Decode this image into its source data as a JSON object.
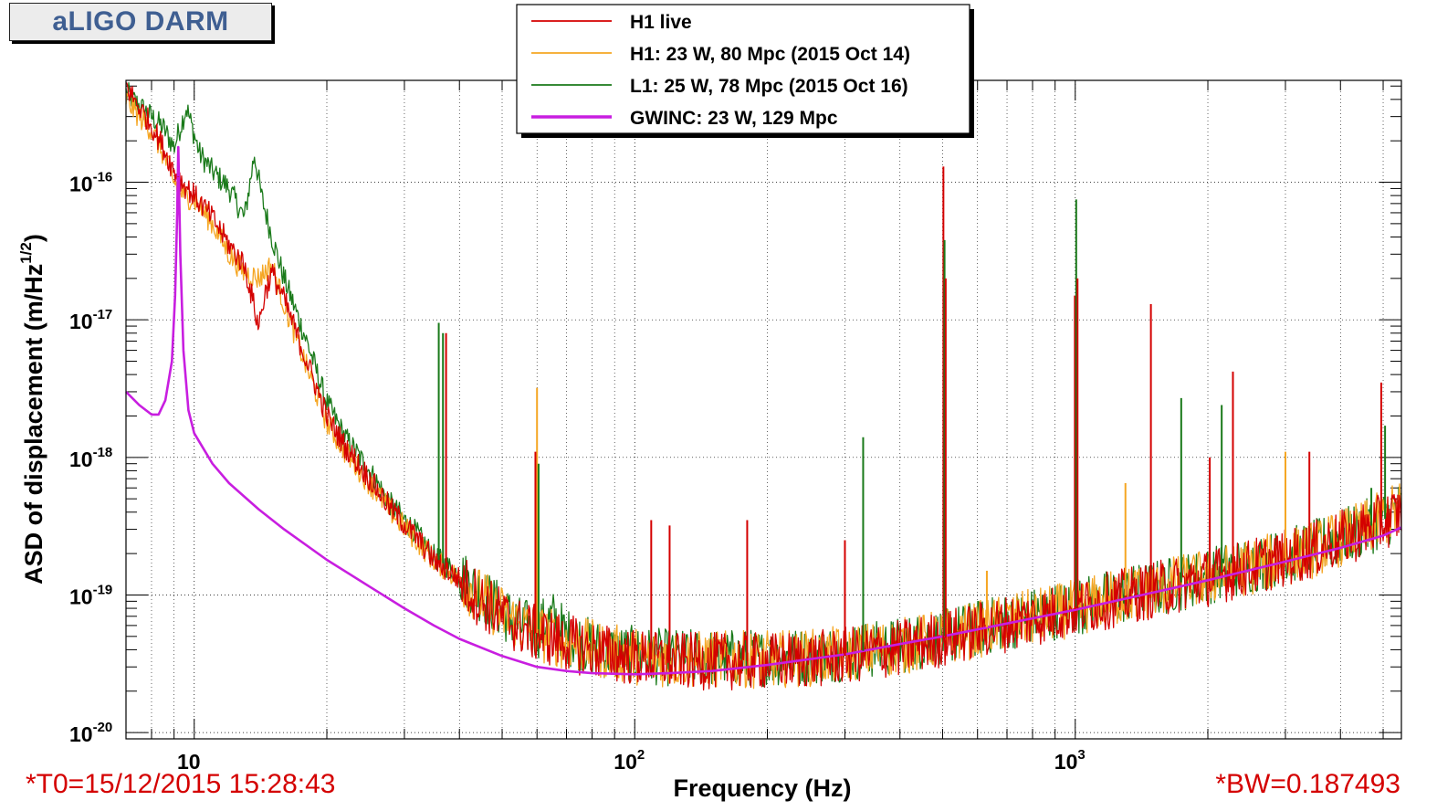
{
  "header": {
    "title": "aLIGO DARM"
  },
  "footer": {
    "t0": "*T0=15/12/2015 15:28:43",
    "bw": "*BW=0.187493"
  },
  "chart_data": {
    "type": "line",
    "xlabel": "Frequency (Hz)",
    "ylabel_main": "ASD of displacement (m/Hz",
    "ylabel_sup": "1/2",
    "ylabel_close": ")",
    "xscale": "log",
    "yscale": "log",
    "xlim": [
      7,
      5500
    ],
    "ylim": [
      9e-21,
      5.5e-16
    ],
    "grid": true,
    "legend_position": "top-center",
    "x_ticks": [
      {
        "value": 10,
        "base": "10",
        "exp": ""
      },
      {
        "value": 100,
        "base": "10",
        "exp": "2"
      },
      {
        "value": 1000,
        "base": "10",
        "exp": "3"
      }
    ],
    "y_ticks": [
      {
        "value": 1e-20,
        "base": "10",
        "exp": "-20"
      },
      {
        "value": 1e-19,
        "base": "10",
        "exp": "-19"
      },
      {
        "value": 1e-18,
        "base": "10",
        "exp": "-18"
      },
      {
        "value": 1e-17,
        "base": "10",
        "exp": "-17"
      },
      {
        "value": 1e-16,
        "base": "10",
        "exp": "-16"
      }
    ],
    "series": [
      {
        "name": "L1: 25 W, 78 Mpc (2015 Oct 16)",
        "color": "#1a7a1a",
        "stroke": 1.3,
        "points": [
          [
            7,
            4.5e-16
          ],
          [
            7.5,
            3.6e-16
          ],
          [
            8,
            3e-16
          ],
          [
            8.5,
            2.5e-16
          ],
          [
            9,
            1.8e-16
          ],
          [
            9.6,
            3.5e-16
          ],
          [
            10.3,
            1.6e-16
          ],
          [
            11,
            1.2e-16
          ],
          [
            12,
            9e-17
          ],
          [
            13,
            5.5e-17
          ],
          [
            13.7,
            1.6e-16
          ],
          [
            14.2,
            8e-17
          ],
          [
            15,
            4e-17
          ],
          [
            16,
            2e-17
          ],
          [
            18,
            7e-18
          ],
          [
            20,
            2.5e-18
          ],
          [
            22,
            1.4e-18
          ],
          [
            25,
            8e-19
          ],
          [
            28,
            4.5e-19
          ],
          [
            32,
            2.8e-19
          ],
          [
            35,
            1.9e-19
          ],
          [
            40,
            1.4e-19
          ],
          [
            45,
            1e-19
          ],
          [
            50,
            7.6e-20
          ],
          [
            55,
            6e-20
          ],
          [
            60,
            5.5e-20
          ],
          [
            65,
            6.8e-20
          ],
          [
            70,
            5e-20
          ],
          [
            80,
            4.2e-20
          ],
          [
            90,
            3.8e-20
          ],
          [
            100,
            3.7e-20
          ],
          [
            120,
            3.5e-20
          ],
          [
            150,
            3.5e-20
          ],
          [
            200,
            3.5e-20
          ],
          [
            250,
            3.6e-20
          ],
          [
            300,
            3.8e-20
          ],
          [
            350,
            4e-20
          ],
          [
            400,
            4.3e-20
          ],
          [
            500,
            5e-20
          ],
          [
            600,
            5.7e-20
          ],
          [
            700,
            6.4e-20
          ],
          [
            800,
            7e-20
          ],
          [
            1000,
            8.2e-20
          ],
          [
            1200,
            9.5e-20
          ],
          [
            1500,
            1.1e-19
          ],
          [
            2000,
            1.38e-19
          ],
          [
            2500,
            1.65e-19
          ],
          [
            3000,
            1.9e-19
          ],
          [
            3500,
            2.2e-19
          ],
          [
            4000,
            2.6e-19
          ],
          [
            4500,
            3e-19
          ],
          [
            5000,
            3.5e-19
          ],
          [
            5500,
            4.2e-19
          ]
        ]
      },
      {
        "name": "H1: 23 W, 80 Mpc (2015 Oct 14)",
        "color": "#f5a623",
        "stroke": 1.3,
        "points": [
          [
            7,
            4e-16
          ],
          [
            7.5,
            3e-16
          ],
          [
            8,
            2.4e-16
          ],
          [
            8.5,
            1.6e-16
          ],
          [
            9,
            1e-16
          ],
          [
            9.5,
            8e-17
          ],
          [
            10,
            7.5e-17
          ],
          [
            11,
            5e-17
          ],
          [
            12,
            3e-17
          ],
          [
            13,
            2.2e-17
          ],
          [
            14,
            2e-17
          ],
          [
            15,
            2.5e-17
          ],
          [
            16,
            1.3e-17
          ],
          [
            18,
            4.5e-18
          ],
          [
            20,
            1.8e-18
          ],
          [
            22,
            1.1e-18
          ],
          [
            25,
            6.5e-19
          ],
          [
            28,
            4e-19
          ],
          [
            32,
            2.5e-19
          ],
          [
            35,
            1.8e-19
          ],
          [
            40,
            1.3e-19
          ],
          [
            45,
            9.5e-20
          ],
          [
            50,
            7.3e-20
          ],
          [
            55,
            6e-20
          ],
          [
            60,
            5.3e-20
          ],
          [
            70,
            4.6e-20
          ],
          [
            80,
            4.1e-20
          ],
          [
            90,
            3.8e-20
          ],
          [
            100,
            3.6e-20
          ],
          [
            120,
            3.4e-20
          ],
          [
            150,
            3.4e-20
          ],
          [
            200,
            3.4e-20
          ],
          [
            250,
            3.5e-20
          ],
          [
            300,
            3.7e-20
          ],
          [
            350,
            4e-20
          ],
          [
            400,
            4.2e-20
          ],
          [
            500,
            4.9e-20
          ],
          [
            600,
            5.6e-20
          ],
          [
            700,
            6.3e-20
          ],
          [
            800,
            6.9e-20
          ],
          [
            1000,
            8e-20
          ],
          [
            1200,
            9.3e-20
          ],
          [
            1500,
            1.1e-19
          ],
          [
            2000,
            1.35e-19
          ],
          [
            2500,
            1.6e-19
          ],
          [
            3000,
            1.85e-19
          ],
          [
            3500,
            2.15e-19
          ],
          [
            4000,
            2.6e-19
          ],
          [
            4500,
            3e-19
          ],
          [
            5000,
            3.6e-19
          ],
          [
            5500,
            4.3e-19
          ]
        ]
      },
      {
        "name": "H1 live",
        "color": "#d40000",
        "stroke": 1.3,
        "points": [
          [
            7,
            5e-16
          ],
          [
            7.5,
            3.5e-16
          ],
          [
            8,
            2.6e-16
          ],
          [
            8.5,
            1.8e-16
          ],
          [
            9,
            1.2e-16
          ],
          [
            9.5,
            9.5e-17
          ],
          [
            10,
            8e-17
          ],
          [
            11,
            5.5e-17
          ],
          [
            12,
            3.5e-17
          ],
          [
            13,
            2.5e-17
          ],
          [
            13.5,
            1.5e-17
          ],
          [
            14,
            9e-18
          ],
          [
            14.5,
            1.6e-17
          ],
          [
            15,
            2.2e-17
          ],
          [
            16,
            1.4e-17
          ],
          [
            18,
            5e-18
          ],
          [
            20,
            2e-18
          ],
          [
            22,
            1.2e-18
          ],
          [
            25,
            7e-19
          ],
          [
            28,
            4.2e-19
          ],
          [
            32,
            2.6e-19
          ],
          [
            35,
            1.8e-19
          ],
          [
            40,
            1.3e-19
          ],
          [
            45,
            9e-20
          ],
          [
            50,
            7e-20
          ],
          [
            55,
            5.8e-20
          ],
          [
            60,
            5.2e-20
          ],
          [
            70,
            4.5e-20
          ],
          [
            80,
            4e-20
          ],
          [
            90,
            3.7e-20
          ],
          [
            100,
            3.5e-20
          ],
          [
            120,
            3.3e-20
          ],
          [
            150,
            3.3e-20
          ],
          [
            200,
            3.3e-20
          ],
          [
            250,
            3.4e-20
          ],
          [
            300,
            3.6e-20
          ],
          [
            350,
            3.9e-20
          ],
          [
            400,
            4.1e-20
          ],
          [
            500,
            4.8e-20
          ],
          [
            600,
            5.5e-20
          ],
          [
            700,
            6.2e-20
          ],
          [
            800,
            6.8e-20
          ],
          [
            1000,
            7.9e-20
          ],
          [
            1200,
            9.2e-20
          ],
          [
            1500,
            1.08e-19
          ],
          [
            2000,
            1.33e-19
          ],
          [
            2500,
            1.6e-19
          ],
          [
            3000,
            1.85e-19
          ],
          [
            3500,
            2.15e-19
          ],
          [
            4000,
            2.55e-19
          ],
          [
            4500,
            2.95e-19
          ],
          [
            5000,
            3.4e-19
          ],
          [
            5500,
            4e-19
          ]
        ]
      },
      {
        "name": "GWINC: 23 W, 129 Mpc",
        "color": "#c81ee0",
        "stroke": 2.6,
        "points": [
          [
            7,
            3e-18
          ],
          [
            7.5,
            2.4e-18
          ],
          [
            8,
            2.05e-18
          ],
          [
            8.3,
            2.05e-18
          ],
          [
            8.6,
            2.6e-18
          ],
          [
            8.9,
            5e-18
          ],
          [
            9.05,
            1.5e-17
          ],
          [
            9.15,
            6e-17
          ],
          [
            9.2,
            1.8e-16
          ],
          [
            9.3,
            3e-17
          ],
          [
            9.45,
            6e-18
          ],
          [
            9.7,
            2.2e-18
          ],
          [
            10,
            1.5e-18
          ],
          [
            11,
            9e-19
          ],
          [
            12,
            6.5e-19
          ],
          [
            14,
            4.2e-19
          ],
          [
            16,
            3e-19
          ],
          [
            20,
            1.8e-19
          ],
          [
            25,
            1.15e-19
          ],
          [
            30,
            8e-20
          ],
          [
            35,
            6e-20
          ],
          [
            40,
            4.8e-20
          ],
          [
            50,
            3.6e-20
          ],
          [
            60,
            3e-20
          ],
          [
            70,
            2.8e-20
          ],
          [
            80,
            2.7e-20
          ],
          [
            100,
            2.65e-20
          ],
          [
            120,
            2.7e-20
          ],
          [
            150,
            2.8e-20
          ],
          [
            200,
            3.1e-20
          ],
          [
            300,
            3.7e-20
          ],
          [
            400,
            4.4e-20
          ],
          [
            500,
            5e-20
          ],
          [
            700,
            6.2e-20
          ],
          [
            1000,
            7.8e-20
          ],
          [
            1500,
            1.04e-19
          ],
          [
            2000,
            1.28e-19
          ],
          [
            3000,
            1.75e-19
          ],
          [
            4000,
            2.2e-19
          ],
          [
            5000,
            2.7e-19
          ],
          [
            5500,
            3.1e-19
          ]
        ]
      }
    ],
    "peaks": [
      {
        "series": "H1 live",
        "f": 9.2,
        "a": 1.1e-16
      },
      {
        "series": "L1: 25 W, 78 Mpc (2015 Oct 16)",
        "f": 35.9,
        "a": 9.5e-18
      },
      {
        "series": "L1: 25 W, 78 Mpc (2015 Oct 16)",
        "f": 36.7,
        "a": 8e-18
      },
      {
        "series": "H1 live",
        "f": 37.3,
        "a": 8e-18
      },
      {
        "series": "H1: 23 W, 80 Mpc (2015 Oct 14)",
        "f": 60,
        "a": 3.2e-18
      },
      {
        "series": "H1 live",
        "f": 59.5,
        "a": 1.1e-18
      },
      {
        "series": "L1: 25 W, 78 Mpc (2015 Oct 16)",
        "f": 60.5,
        "a": 9e-19
      },
      {
        "series": "H1 live",
        "f": 109,
        "a": 3.5e-19
      },
      {
        "series": "H1 live",
        "f": 120,
        "a": 3.2e-19
      },
      {
        "series": "H1 live",
        "f": 180,
        "a": 3.5e-19
      },
      {
        "series": "H1 live",
        "f": 300,
        "a": 2.5e-19
      },
      {
        "series": "L1: 25 W, 78 Mpc (2015 Oct 16)",
        "f": 330,
        "a": 1.4e-18
      },
      {
        "series": "H1 live",
        "f": 502,
        "a": 1.3e-16
      },
      {
        "series": "L1: 25 W, 78 Mpc (2015 Oct 16)",
        "f": 505,
        "a": 3.8e-17
      },
      {
        "series": "H1 live",
        "f": 508,
        "a": 2e-17
      },
      {
        "series": "H1: 23 W, 80 Mpc (2015 Oct 14)",
        "f": 630,
        "a": 1.5e-19
      },
      {
        "series": "H1 live",
        "f": 998,
        "a": 1.5e-17
      },
      {
        "series": "L1: 25 W, 78 Mpc (2015 Oct 16)",
        "f": 1005,
        "a": 7.5e-17
      },
      {
        "series": "H1 live",
        "f": 1012,
        "a": 2e-17
      },
      {
        "series": "H1: 23 W, 80 Mpc (2015 Oct 14)",
        "f": 1300,
        "a": 6.5e-19
      },
      {
        "series": "H1 live",
        "f": 1485,
        "a": 1.3e-17
      },
      {
        "series": "L1: 25 W, 78 Mpc (2015 Oct 16)",
        "f": 1740,
        "a": 2.7e-18
      },
      {
        "series": "H1 live",
        "f": 2020,
        "a": 1e-18
      },
      {
        "series": "L1: 25 W, 78 Mpc (2015 Oct 16)",
        "f": 2150,
        "a": 2.4e-18
      },
      {
        "series": "H1 live",
        "f": 2280,
        "a": 4.2e-18
      },
      {
        "series": "H1: 23 W, 80 Mpc (2015 Oct 14)",
        "f": 3000,
        "a": 1.1e-18
      },
      {
        "series": "H1 live",
        "f": 3400,
        "a": 1.1e-18
      },
      {
        "series": "L1: 25 W, 78 Mpc (2015 Oct 16)",
        "f": 4700,
        "a": 6e-19
      },
      {
        "series": "H1 live",
        "f": 4950,
        "a": 3.5e-18
      },
      {
        "series": "L1: 25 W, 78 Mpc (2015 Oct 16)",
        "f": 5050,
        "a": 1.7e-18
      }
    ]
  }
}
